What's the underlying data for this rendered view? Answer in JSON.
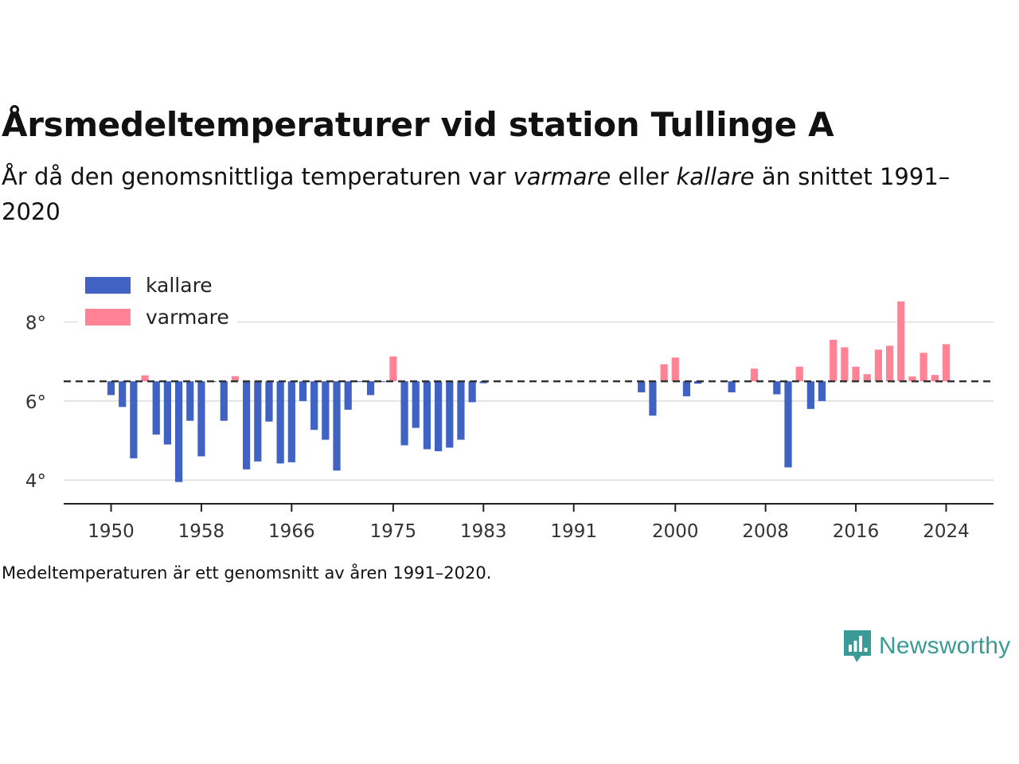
{
  "header": {
    "title": "Årsmedeltemperaturer vid station Tullinge A",
    "subtitle_pre": "År då den genomsnittliga temperaturen var ",
    "subtitle_em1": "varmare",
    "subtitle_mid": " eller ",
    "subtitle_em2": "kallare",
    "subtitle_post": " än snittet 1991–2020"
  },
  "caption": "Medeltemperaturen är ett genomsnitt av åren 1991–2020.",
  "brand": {
    "name": "Newsworthy",
    "icon": "bar-chart-speech-bubble-icon",
    "color": "#3a9a95"
  },
  "colors": {
    "kallare": "#3f62c3",
    "varmare": "#ff8395",
    "baseline": "#333333",
    "grid": "#dddddd"
  },
  "chart_data": {
    "type": "bar",
    "baseline": 6.5,
    "ylim": [
      3.4,
      9.1
    ],
    "xlim": [
      1945.8,
      2028.2
    ],
    "yticks": [
      {
        "value": 4,
        "label": "4°"
      },
      {
        "value": 6,
        "label": "6°"
      },
      {
        "value": 8,
        "label": "8°"
      }
    ],
    "xticks": [
      1950,
      1958,
      1966,
      1975,
      1983,
      1991,
      2000,
      2008,
      2016,
      2024
    ],
    "legend": {
      "position": "top-left",
      "items": [
        {
          "key": "kallare",
          "label": "kallare"
        },
        {
          "key": "varmare",
          "label": "varmare"
        }
      ]
    },
    "x": [
      1950,
      1951,
      1952,
      1953,
      1954,
      1955,
      1956,
      1957,
      1958,
      1959,
      1960,
      1961,
      1962,
      1963,
      1964,
      1965,
      1966,
      1967,
      1968,
      1969,
      1970,
      1971,
      1972,
      1973,
      1974,
      1975,
      1976,
      1977,
      1978,
      1979,
      1980,
      1981,
      1982,
      1983,
      1997,
      1998,
      1999,
      2000,
      2001,
      2002,
      2005,
      2007,
      2009,
      2010,
      2011,
      2012,
      2013,
      2014,
      2015,
      2016,
      2017,
      2018,
      2019,
      2020,
      2021,
      2022,
      2023,
      2024
    ],
    "values": [
      6.15,
      5.85,
      4.55,
      6.65,
      5.15,
      4.9,
      3.95,
      5.5,
      4.6,
      6.5,
      5.5,
      6.63,
      4.27,
      4.47,
      5.48,
      4.42,
      4.45,
      6.0,
      5.27,
      5.02,
      4.24,
      5.78,
      6.5,
      6.15,
      6.5,
      7.13,
      4.88,
      5.32,
      4.78,
      4.73,
      4.82,
      5.02,
      5.97,
      6.45,
      6.22,
      5.63,
      6.93,
      7.1,
      6.12,
      6.44,
      6.22,
      6.82,
      6.17,
      4.32,
      6.87,
      5.8,
      6.0,
      7.55,
      7.36,
      6.87,
      6.68,
      7.3,
      7.4,
      8.52,
      6.62,
      7.22,
      6.66,
      7.44
    ]
  }
}
